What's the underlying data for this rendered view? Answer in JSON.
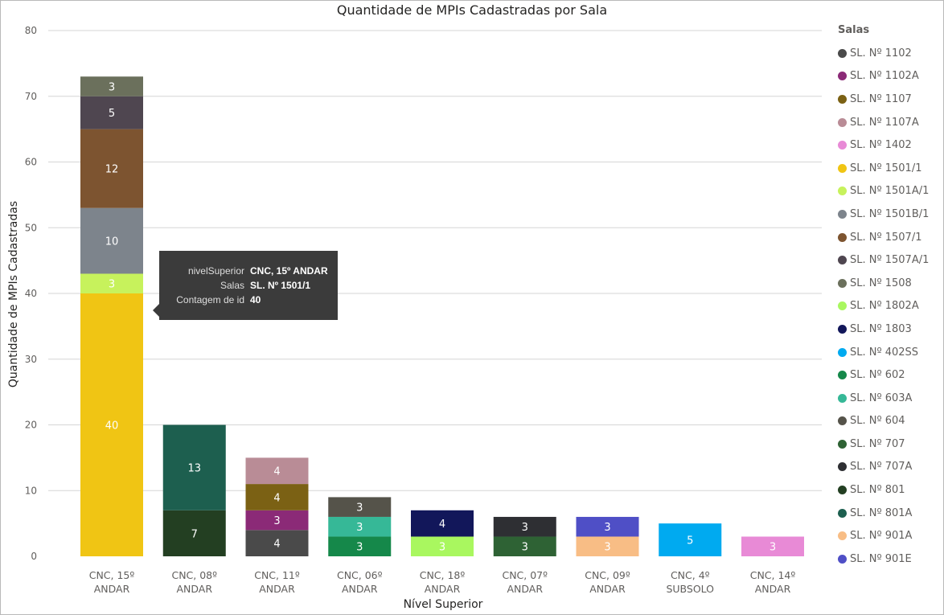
{
  "chart_data": {
    "type": "bar",
    "stacked": true,
    "title": "Quantidade de MPIs Cadastradas por Sala",
    "xlabel": "Nível Superior",
    "ylabel": "Quantidade de MPIs Cadastradas",
    "ylim": [
      0,
      80
    ],
    "yticks": [
      0,
      10,
      20,
      30,
      40,
      50,
      60,
      70,
      80
    ],
    "grid": true,
    "legend_position": "right",
    "legend_title": "Salas",
    "categories": [
      [
        "CNC, 15º",
        "ANDAR"
      ],
      [
        "CNC, 08º",
        "ANDAR"
      ],
      [
        "CNC, 11º",
        "ANDAR"
      ],
      [
        "CNC, 06º",
        "ANDAR"
      ],
      [
        "CNC, 18º",
        "ANDAR"
      ],
      [
        "CNC, 07º",
        "ANDAR"
      ],
      [
        "CNC, 09º",
        "ANDAR"
      ],
      [
        "CNC, 4º",
        "SUBSOLO"
      ],
      [
        "CNC, 14º",
        "ANDAR"
      ]
    ],
    "series": [
      {
        "name": "SL. Nº 1102",
        "color": "#4a4a4a"
      },
      {
        "name": "SL. Nº 1102A",
        "color": "#8b2a77"
      },
      {
        "name": "SL. Nº 1107",
        "color": "#7b6114"
      },
      {
        "name": "SL. Nº 1107A",
        "color": "#b98c96"
      },
      {
        "name": "SL. Nº 1402",
        "color": "#e88ad6"
      },
      {
        "name": "SL. Nº 1501/1",
        "color": "#f0c514"
      },
      {
        "name": "SL. Nº 1501A/1",
        "color": "#c7f25c"
      },
      {
        "name": "SL. Nº 1501B/1",
        "color": "#7d848c"
      },
      {
        "name": "SL. Nº 1507/1",
        "color": "#7d5430"
      },
      {
        "name": "SL. Nº 1507A/1",
        "color": "#4f4650"
      },
      {
        "name": "SL. Nº 1508",
        "color": "#6b705c"
      },
      {
        "name": "SL. Nº 1802A",
        "color": "#a9f75f"
      },
      {
        "name": "SL. Nº 1803",
        "color": "#12175a"
      },
      {
        "name": "SL. Nº 402SS",
        "color": "#00aaf0"
      },
      {
        "name": "SL. Nº 602",
        "color": "#15884a"
      },
      {
        "name": "SL. Nº 603A",
        "color": "#36b897"
      },
      {
        "name": "SL. Nº 604",
        "color": "#55534a"
      },
      {
        "name": "SL. Nº 707",
        "color": "#2e6234"
      },
      {
        "name": "SL. Nº 707A",
        "color": "#2e2f33"
      },
      {
        "name": "SL. Nº 801",
        "color": "#233f22"
      },
      {
        "name": "SL. Nº 801A",
        "color": "#1d5f4f"
      },
      {
        "name": "SL. Nº 901A",
        "color": "#f8bd85"
      },
      {
        "name": "SL. Nº 901E",
        "color": "#4f4fc6"
      }
    ],
    "stacks": [
      [
        {
          "s": 5,
          "v": 40
        },
        {
          "s": 6,
          "v": 3
        },
        {
          "s": 7,
          "v": 10
        },
        {
          "s": 8,
          "v": 12
        },
        {
          "s": 9,
          "v": 5
        },
        {
          "s": 10,
          "v": 3
        }
      ],
      [
        {
          "s": 19,
          "v": 7
        },
        {
          "s": 20,
          "v": 13
        }
      ],
      [
        {
          "s": 0,
          "v": 4
        },
        {
          "s": 1,
          "v": 3
        },
        {
          "s": 2,
          "v": 4
        },
        {
          "s": 3,
          "v": 4
        }
      ],
      [
        {
          "s": 14,
          "v": 3
        },
        {
          "s": 15,
          "v": 3
        },
        {
          "s": 16,
          "v": 3
        }
      ],
      [
        {
          "s": 11,
          "v": 3
        },
        {
          "s": 12,
          "v": 4
        }
      ],
      [
        {
          "s": 17,
          "v": 3
        },
        {
          "s": 18,
          "v": 3
        }
      ],
      [
        {
          "s": 21,
          "v": 3
        },
        {
          "s": 22,
          "v": 3
        }
      ],
      [
        {
          "s": 13,
          "v": 5
        }
      ],
      [
        {
          "s": 4,
          "v": 3
        }
      ]
    ]
  },
  "tooltip": {
    "rows": [
      {
        "key": "nivelSuperior",
        "value": "CNC, 15º ANDAR"
      },
      {
        "key": "Salas",
        "value": "SL. Nº 1501/1"
      },
      {
        "key": "Contagem de id",
        "value": "40"
      }
    ]
  }
}
